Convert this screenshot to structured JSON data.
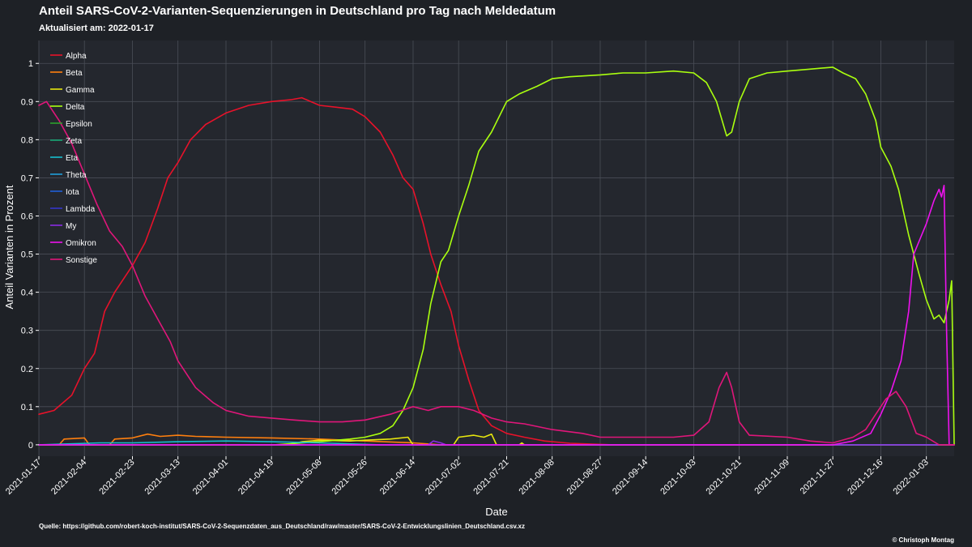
{
  "header": {
    "title": "Anteil SARS-CoV-2-Varianten-Sequenzierungen in Deutschland pro Tag nach Meldedatum",
    "subtitle": "Aktualisiert am: 2022-01-17"
  },
  "footer": {
    "source": "Quelle: https://github.com/robert-koch-institut/SARS-CoV-2-Sequenzdaten_aus_Deutschland/raw/master/SARS-CoV-2-Entwicklungslinien_Deutschland.csv.xz",
    "credit": "© Christoph Montag"
  },
  "chart_data": {
    "type": "line",
    "xlabel": "Date",
    "ylabel": "Anteil Varianten in Prozent",
    "xlim": [
      "2021-01-17",
      "2022-01-14"
    ],
    "ylim": [
      -0.03,
      1.06
    ],
    "grid": true,
    "legend_position": "top-left",
    "background": "#24272e",
    "x_ticks": [
      "2021-01-17",
      "2021-02-04",
      "2021-02-23",
      "2021-03-13",
      "2021-04-01",
      "2021-04-19",
      "2021-05-08",
      "2021-05-26",
      "2021-06-14",
      "2021-07-02",
      "2021-07-21",
      "2021-08-08",
      "2021-08-27",
      "2021-09-14",
      "2021-10-03",
      "2021-10-21",
      "2021-11-09",
      "2021-11-27",
      "2021-12-16",
      "2022-01-03"
    ],
    "y_ticks": [
      0,
      0.1,
      0.2,
      0.3,
      0.4,
      0.5,
      0.6,
      0.7,
      0.8,
      0.9,
      1
    ],
    "y_tick_labels": [
      "0",
      "0.1",
      "0.2",
      "0.3",
      "0.4",
      "0.5",
      "0.6",
      "0.7",
      "0.8",
      "0.9",
      "1"
    ],
    "series": [
      {
        "name": "Alpha",
        "color": "#e8122a",
        "points": [
          [
            "2021-01-17",
            0.08
          ],
          [
            "2021-01-23",
            0.09
          ],
          [
            "2021-01-30",
            0.13
          ],
          [
            "2021-02-04",
            0.2
          ],
          [
            "2021-02-08",
            0.24
          ],
          [
            "2021-02-12",
            0.35
          ],
          [
            "2021-02-16",
            0.4
          ],
          [
            "2021-02-20",
            0.44
          ],
          [
            "2021-02-23",
            0.47
          ],
          [
            "2021-02-28",
            0.53
          ],
          [
            "2021-03-05",
            0.62
          ],
          [
            "2021-03-09",
            0.7
          ],
          [
            "2021-03-13",
            0.74
          ],
          [
            "2021-03-18",
            0.8
          ],
          [
            "2021-03-24",
            0.84
          ],
          [
            "2021-04-01",
            0.87
          ],
          [
            "2021-04-10",
            0.89
          ],
          [
            "2021-04-19",
            0.9
          ],
          [
            "2021-04-27",
            0.905
          ],
          [
            "2021-05-01",
            0.91
          ],
          [
            "2021-05-08",
            0.89
          ],
          [
            "2021-05-15",
            0.885
          ],
          [
            "2021-05-21",
            0.88
          ],
          [
            "2021-05-26",
            0.86
          ],
          [
            "2021-06-01",
            0.82
          ],
          [
            "2021-06-06",
            0.76
          ],
          [
            "2021-06-10",
            0.7
          ],
          [
            "2021-06-14",
            0.67
          ],
          [
            "2021-06-18",
            0.58
          ],
          [
            "2021-06-21",
            0.5
          ],
          [
            "2021-06-25",
            0.42
          ],
          [
            "2021-06-29",
            0.35
          ],
          [
            "2021-07-02",
            0.26
          ],
          [
            "2021-07-06",
            0.17
          ],
          [
            "2021-07-10",
            0.09
          ],
          [
            "2021-07-15",
            0.05
          ],
          [
            "2021-07-21",
            0.03
          ],
          [
            "2021-07-28",
            0.02
          ],
          [
            "2021-08-05",
            0.01
          ],
          [
            "2021-08-15",
            0.004
          ],
          [
            "2021-09-01",
            0.0
          ],
          [
            "2022-01-14",
            0.0
          ]
        ]
      },
      {
        "name": "Beta",
        "color": "#ff7f0e",
        "points": [
          [
            "2021-01-17",
            0.0
          ],
          [
            "2021-01-25",
            0.0
          ],
          [
            "2021-01-27",
            0.015
          ],
          [
            "2021-02-04",
            0.018
          ],
          [
            "2021-02-06",
            0.0
          ],
          [
            "2021-02-14",
            0.0
          ],
          [
            "2021-02-16",
            0.015
          ],
          [
            "2021-02-23",
            0.018
          ],
          [
            "2021-03-01",
            0.028
          ],
          [
            "2021-03-06",
            0.022
          ],
          [
            "2021-03-13",
            0.025
          ],
          [
            "2021-03-20",
            0.022
          ],
          [
            "2021-04-01",
            0.02
          ],
          [
            "2021-04-19",
            0.018
          ],
          [
            "2021-05-08",
            0.015
          ],
          [
            "2021-05-26",
            0.01
          ],
          [
            "2021-06-14",
            0.005
          ],
          [
            "2021-06-25",
            0.0
          ],
          [
            "2022-01-14",
            0.0
          ]
        ]
      },
      {
        "name": "Gamma",
        "color": "#e6e60e",
        "points": [
          [
            "2021-01-17",
            0.0
          ],
          [
            "2021-04-25",
            0.0
          ],
          [
            "2021-05-01",
            0.008
          ],
          [
            "2021-05-08",
            0.012
          ],
          [
            "2021-05-20",
            0.01
          ],
          [
            "2021-05-26",
            0.012
          ],
          [
            "2021-06-05",
            0.015
          ],
          [
            "2021-06-12",
            0.02
          ],
          [
            "2021-06-14",
            0.0
          ],
          [
            "2021-06-30",
            0.0
          ],
          [
            "2021-07-02",
            0.02
          ],
          [
            "2021-07-08",
            0.025
          ],
          [
            "2021-07-12",
            0.02
          ],
          [
            "2021-07-15",
            0.028
          ],
          [
            "2021-07-17",
            0.0
          ],
          [
            "2021-07-26",
            0.0
          ],
          [
            "2021-07-27",
            0.005
          ],
          [
            "2021-07-28",
            0.0
          ],
          [
            "2022-01-14",
            0.0
          ]
        ]
      },
      {
        "name": "Delta",
        "color": "#aaff0f",
        "points": [
          [
            "2021-01-17",
            0.0
          ],
          [
            "2021-04-20",
            0.0
          ],
          [
            "2021-05-08",
            0.008
          ],
          [
            "2021-05-20",
            0.015
          ],
          [
            "2021-05-26",
            0.02
          ],
          [
            "2021-06-01",
            0.03
          ],
          [
            "2021-06-06",
            0.05
          ],
          [
            "2021-06-10",
            0.09
          ],
          [
            "2021-06-14",
            0.15
          ],
          [
            "2021-06-18",
            0.25
          ],
          [
            "2021-06-21",
            0.37
          ],
          [
            "2021-06-25",
            0.48
          ],
          [
            "2021-06-28",
            0.51
          ],
          [
            "2021-07-02",
            0.6
          ],
          [
            "2021-07-06",
            0.68
          ],
          [
            "2021-07-10",
            0.77
          ],
          [
            "2021-07-15",
            0.82
          ],
          [
            "2021-07-21",
            0.9
          ],
          [
            "2021-07-26",
            0.92
          ],
          [
            "2021-08-02",
            0.94
          ],
          [
            "2021-08-08",
            0.96
          ],
          [
            "2021-08-15",
            0.965
          ],
          [
            "2021-08-27",
            0.97
          ],
          [
            "2021-09-05",
            0.975
          ],
          [
            "2021-09-14",
            0.975
          ],
          [
            "2021-09-25",
            0.98
          ],
          [
            "2021-10-03",
            0.975
          ],
          [
            "2021-10-08",
            0.95
          ],
          [
            "2021-10-12",
            0.9
          ],
          [
            "2021-10-16",
            0.81
          ],
          [
            "2021-10-18",
            0.82
          ],
          [
            "2021-10-21",
            0.9
          ],
          [
            "2021-10-25",
            0.96
          ],
          [
            "2021-11-01",
            0.975
          ],
          [
            "2021-11-09",
            0.98
          ],
          [
            "2021-11-18",
            0.985
          ],
          [
            "2021-11-27",
            0.99
          ],
          [
            "2021-12-01",
            0.975
          ],
          [
            "2021-12-06",
            0.96
          ],
          [
            "2021-12-10",
            0.92
          ],
          [
            "2021-12-14",
            0.85
          ],
          [
            "2021-12-16",
            0.78
          ],
          [
            "2021-12-20",
            0.73
          ],
          [
            "2021-12-23",
            0.67
          ],
          [
            "2021-12-27",
            0.55
          ],
          [
            "2021-12-31",
            0.45
          ],
          [
            "2022-01-03",
            0.38
          ],
          [
            "2022-01-06",
            0.33
          ],
          [
            "2022-01-08",
            0.34
          ],
          [
            "2022-01-10",
            0.32
          ],
          [
            "2022-01-12",
            0.38
          ],
          [
            "2022-01-13",
            0.43
          ],
          [
            "2022-01-14",
            0.0
          ]
        ]
      },
      {
        "name": "Epsilon",
        "color": "#2ca02c",
        "points": [
          [
            "2021-01-17",
            0.0
          ],
          [
            "2022-01-14",
            0.0
          ]
        ]
      },
      {
        "name": "Zeta",
        "color": "#17a673",
        "points": [
          [
            "2021-01-17",
            0.0
          ],
          [
            "2022-01-14",
            0.0
          ]
        ]
      },
      {
        "name": "Eta",
        "color": "#17becf",
        "points": [
          [
            "2021-01-17",
            0.0
          ],
          [
            "2021-02-10",
            0.005
          ],
          [
            "2021-02-23",
            0.005
          ],
          [
            "2021-03-13",
            0.008
          ],
          [
            "2021-04-01",
            0.01
          ],
          [
            "2021-04-19",
            0.008
          ],
          [
            "2021-05-08",
            0.005
          ],
          [
            "2021-06-01",
            0.0
          ],
          [
            "2022-01-14",
            0.0
          ]
        ]
      },
      {
        "name": "Theta",
        "color": "#1f9fd9",
        "points": [
          [
            "2021-01-17",
            0.0
          ],
          [
            "2022-01-14",
            0.0
          ]
        ]
      },
      {
        "name": "Iota",
        "color": "#1f5fd9",
        "points": [
          [
            "2021-01-17",
            0.0
          ],
          [
            "2022-01-14",
            0.0
          ]
        ]
      },
      {
        "name": "Lambda",
        "color": "#3535c9",
        "points": [
          [
            "2021-01-17",
            0.0
          ],
          [
            "2022-01-14",
            0.0
          ]
        ]
      },
      {
        "name": "My",
        "color": "#8a2be2",
        "points": [
          [
            "2021-01-17",
            0.0
          ],
          [
            "2021-06-20",
            0.0
          ],
          [
            "2021-06-22",
            0.01
          ],
          [
            "2021-06-25",
            0.005
          ],
          [
            "2021-06-27",
            0.0
          ],
          [
            "2022-01-14",
            0.0
          ]
        ]
      },
      {
        "name": "Omikron",
        "color": "#ee12ee",
        "points": [
          [
            "2021-01-17",
            0.0
          ],
          [
            "2021-11-27",
            0.0
          ],
          [
            "2021-12-05",
            0.01
          ],
          [
            "2021-12-12",
            0.03
          ],
          [
            "2021-12-16",
            0.08
          ],
          [
            "2021-12-20",
            0.14
          ],
          [
            "2021-12-24",
            0.22
          ],
          [
            "2021-12-27",
            0.35
          ],
          [
            "2021-12-29",
            0.5
          ],
          [
            "2022-01-03",
            0.58
          ],
          [
            "2022-01-06",
            0.64
          ],
          [
            "2022-01-08",
            0.67
          ],
          [
            "2022-01-09",
            0.65
          ],
          [
            "2022-01-10",
            0.68
          ],
          [
            "2022-01-11",
            0.3
          ],
          [
            "2022-01-12",
            0.0
          ],
          [
            "2022-01-14",
            0.0
          ]
        ]
      },
      {
        "name": "Sonstige",
        "color": "#e0167a",
        "points": [
          [
            "2021-01-17",
            0.89
          ],
          [
            "2021-01-20",
            0.9
          ],
          [
            "2021-01-25",
            0.85
          ],
          [
            "2021-01-30",
            0.79
          ],
          [
            "2021-02-04",
            0.71
          ],
          [
            "2021-02-09",
            0.63
          ],
          [
            "2021-02-14",
            0.56
          ],
          [
            "2021-02-19",
            0.52
          ],
          [
            "2021-02-23",
            0.47
          ],
          [
            "2021-02-28",
            0.39
          ],
          [
            "2021-03-05",
            0.33
          ],
          [
            "2021-03-10",
            0.27
          ],
          [
            "2021-03-13",
            0.22
          ],
          [
            "2021-03-20",
            0.15
          ],
          [
            "2021-03-27",
            0.11
          ],
          [
            "2021-04-01",
            0.09
          ],
          [
            "2021-04-10",
            0.075
          ],
          [
            "2021-04-19",
            0.07
          ],
          [
            "2021-04-28",
            0.065
          ],
          [
            "2021-05-08",
            0.06
          ],
          [
            "2021-05-17",
            0.06
          ],
          [
            "2021-05-26",
            0.065
          ],
          [
            "2021-06-05",
            0.08
          ],
          [
            "2021-06-14",
            0.1
          ],
          [
            "2021-06-20",
            0.09
          ],
          [
            "2021-06-25",
            0.1
          ],
          [
            "2021-07-02",
            0.1
          ],
          [
            "2021-07-08",
            0.09
          ],
          [
            "2021-07-15",
            0.07
          ],
          [
            "2021-07-21",
            0.06
          ],
          [
            "2021-07-28",
            0.055
          ],
          [
            "2021-08-08",
            0.04
          ],
          [
            "2021-08-20",
            0.03
          ],
          [
            "2021-08-27",
            0.02
          ],
          [
            "2021-09-14",
            0.02
          ],
          [
            "2021-09-25",
            0.02
          ],
          [
            "2021-10-03",
            0.025
          ],
          [
            "2021-10-09",
            0.06
          ],
          [
            "2021-10-13",
            0.15
          ],
          [
            "2021-10-16",
            0.19
          ],
          [
            "2021-10-18",
            0.15
          ],
          [
            "2021-10-21",
            0.06
          ],
          [
            "2021-10-25",
            0.025
          ],
          [
            "2021-11-09",
            0.02
          ],
          [
            "2021-11-18",
            0.01
          ],
          [
            "2021-11-27",
            0.005
          ],
          [
            "2021-12-05",
            0.02
          ],
          [
            "2021-12-10",
            0.04
          ],
          [
            "2021-12-14",
            0.08
          ],
          [
            "2021-12-18",
            0.12
          ],
          [
            "2021-12-22",
            0.14
          ],
          [
            "2021-12-26",
            0.1
          ],
          [
            "2021-12-30",
            0.03
          ],
          [
            "2022-01-03",
            0.02
          ],
          [
            "2022-01-08",
            0.0
          ],
          [
            "2022-01-14",
            0.0
          ]
        ]
      }
    ]
  }
}
